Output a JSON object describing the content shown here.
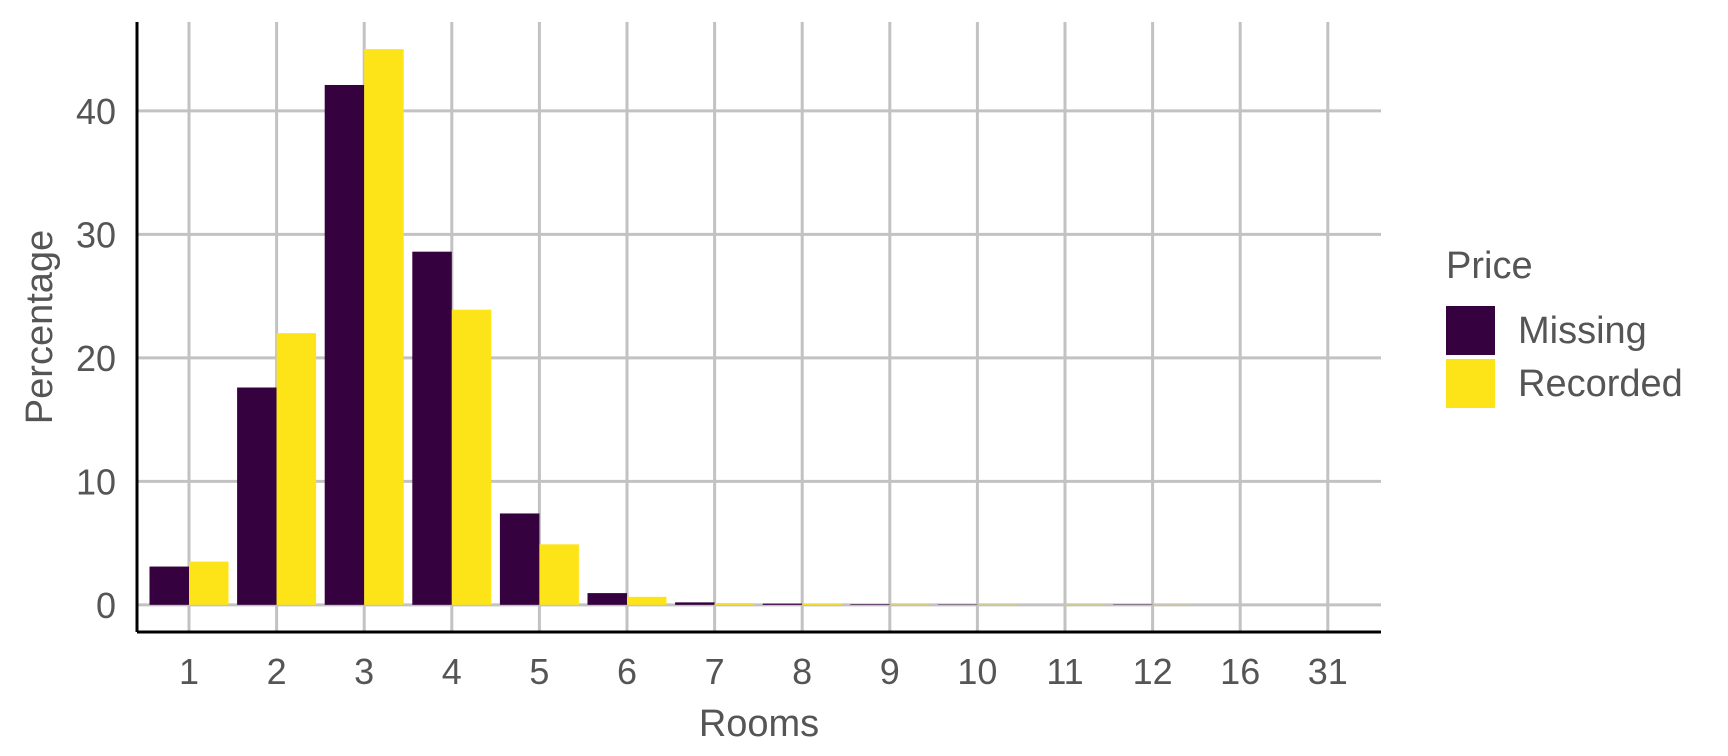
{
  "chart_data": {
    "type": "bar",
    "xlabel": "Rooms",
    "ylabel": "Percentage",
    "categories": [
      "1",
      "2",
      "3",
      "4",
      "5",
      "6",
      "7",
      "8",
      "9",
      "10",
      "11",
      "12",
      "16",
      "31"
    ],
    "ylim": [
      -2.2,
      47.2
    ],
    "yticks": [
      0,
      10,
      20,
      30,
      40
    ],
    "grid": true,
    "legend": {
      "title": "Price",
      "position": "right"
    },
    "series": [
      {
        "name": "Missing",
        "color": "#35013f",
        "values": [
          3.1,
          17.6,
          42.1,
          28.6,
          7.4,
          0.95,
          0.2,
          0.1,
          0.05,
          0.03,
          0.0,
          0.03,
          0.0,
          0.0
        ]
      },
      {
        "name": "Recorded",
        "color": "#fde419",
        "values": [
          3.5,
          22.0,
          45.0,
          23.9,
          4.9,
          0.65,
          0.15,
          0.12,
          0.03,
          0.02,
          0.02,
          0.01,
          0.0,
          0.0
        ]
      }
    ]
  }
}
